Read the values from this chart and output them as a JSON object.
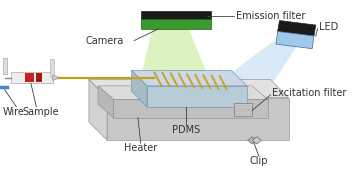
{
  "background_color": "#ffffff",
  "labels": {
    "camera": "Camera",
    "emission_filter": "Emission filter",
    "led": "LED",
    "excitation_filter": "Excitation filter",
    "wire": "Wire",
    "sample": "Sample",
    "pdms": "PDMS",
    "heater": "Heater",
    "clip": "Clip"
  },
  "colors": {
    "emission_filter_black": "#1a1a1a",
    "emission_filter_green": "#3a9a30",
    "light_beam_green": "#c8eda0",
    "led_black": "#1a1a1a",
    "led_blue": "#a0c8e8",
    "light_beam_blue": "#cce4f5",
    "platform_top": "#e2e2e2",
    "platform_front": "#c8c8c8",
    "platform_side": "#d2d2d2",
    "heater_top": "#dcdcdc",
    "heater_front": "#c0c0c0",
    "heater_side": "#b8b8b8",
    "chip_top": "#ccd8e8",
    "chip_front": "#b8ccd8",
    "chip_side": "#a8bcc8",
    "tube_color": "#c8a018",
    "syringe_barrel": "#eeeeee",
    "syringe_red": "#cc2020",
    "wire_blue": "#4488cc",
    "annotation_line": "#404040",
    "text_color": "#333333"
  },
  "font_size": 7.0
}
